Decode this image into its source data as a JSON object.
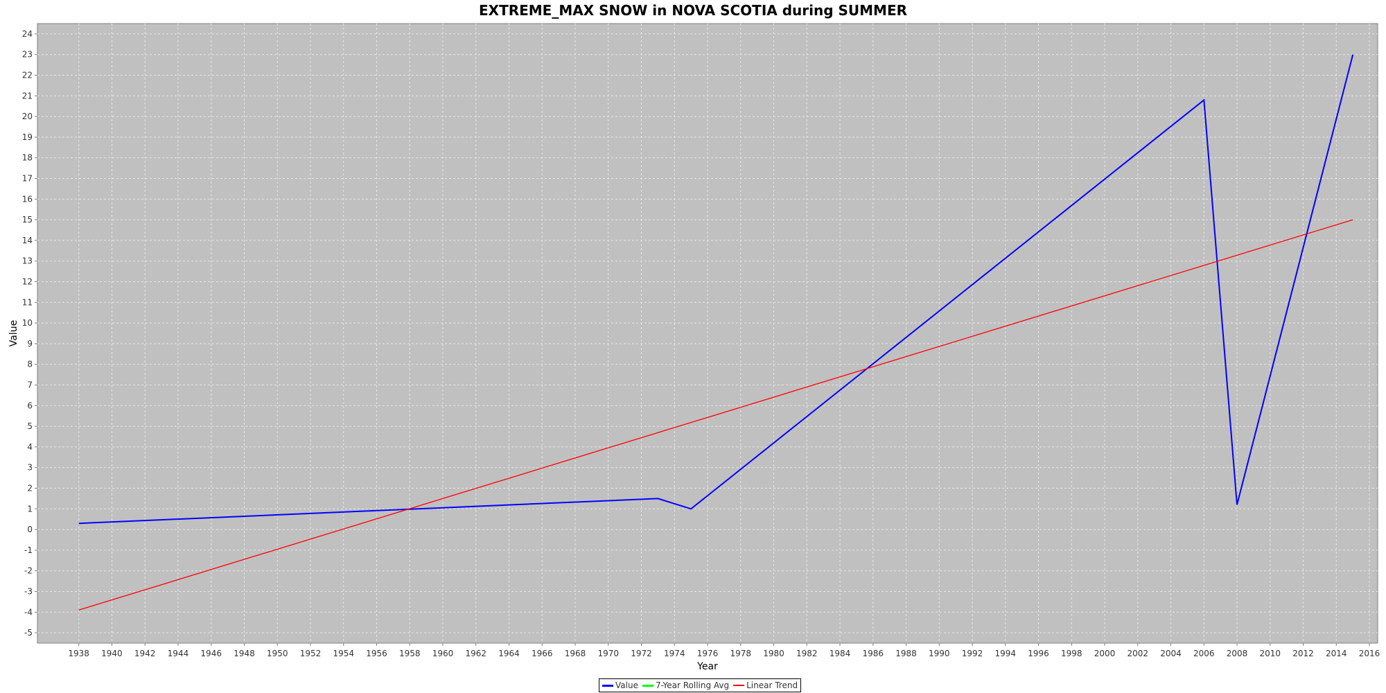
{
  "chart_data": {
    "type": "line",
    "title": "EXTREME_MAX SNOW in NOVA SCOTIA during SUMMER",
    "xlabel": "Year",
    "ylabel": "Value",
    "xlim": [
      1935.5,
      2016.5
    ],
    "ylim": [
      -5.5,
      24.5
    ],
    "x_ticks": [
      1938,
      1940,
      1942,
      1944,
      1946,
      1948,
      1950,
      1952,
      1954,
      1956,
      1958,
      1960,
      1962,
      1964,
      1966,
      1968,
      1970,
      1972,
      1974,
      1976,
      1978,
      1980,
      1982,
      1984,
      1986,
      1988,
      1990,
      1992,
      1994,
      1996,
      1998,
      2000,
      2002,
      2004,
      2006,
      2008,
      2010,
      2012,
      2014,
      2016
    ],
    "y_ticks": [
      -5,
      -4,
      -3,
      -2,
      -1,
      0,
      1,
      2,
      3,
      4,
      5,
      6,
      7,
      8,
      9,
      10,
      11,
      12,
      13,
      14,
      15,
      16,
      17,
      18,
      19,
      20,
      21,
      22,
      23,
      24
    ],
    "grid": true,
    "legend_position": "bottom-center",
    "series": [
      {
        "name": "Value",
        "color": "#0000ff",
        "x": [
          1938,
          1973,
          1975,
          2006,
          2008,
          2015
        ],
        "y": [
          0.3,
          1.5,
          1.0,
          20.8,
          1.2,
          23.0
        ]
      },
      {
        "name": "7-Year Rolling Avg",
        "color": "#00ff00",
        "x": [],
        "y": []
      },
      {
        "name": "Linear Trend",
        "color": "#ff0000",
        "x": [
          1938,
          2015
        ],
        "y": [
          -3.9,
          15.0
        ]
      }
    ]
  }
}
